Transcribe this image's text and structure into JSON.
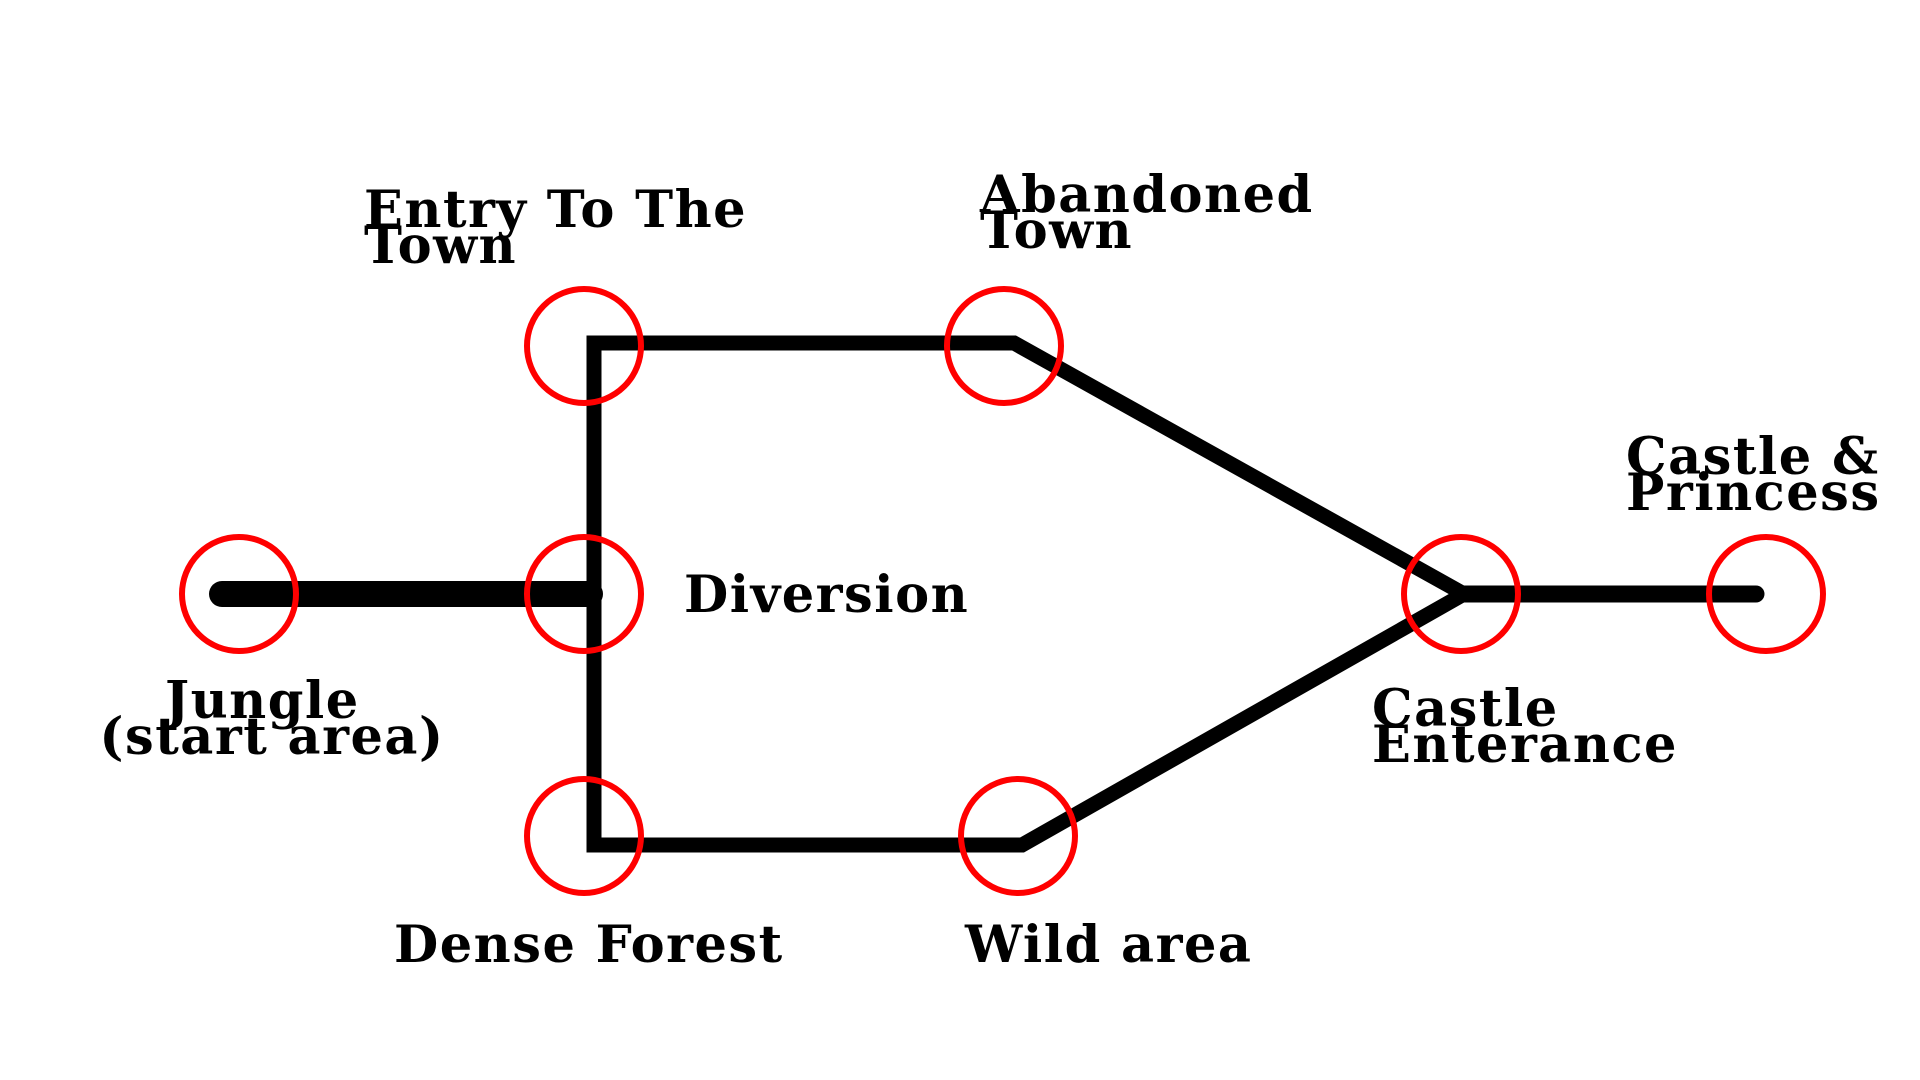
{
  "colors": {
    "node_ring": "#ff0000",
    "edge": "#000000",
    "label": "#000000",
    "background": "#ffffff"
  },
  "nodes": {
    "jungle": {
      "line1": "Jungle",
      "line2": "(start area)"
    },
    "entry_town": {
      "line1": "Entry To The",
      "line2": "Town"
    },
    "diversion": {
      "line1": "Diversion"
    },
    "dense_forest": {
      "line1": "Dense Forest"
    },
    "abandoned_town": {
      "line1": "Abandoned",
      "line2": "Town"
    },
    "wild_area": {
      "line1": "Wild area"
    },
    "castle_entrance": {
      "line1": "Castle",
      "line2": "Enterance"
    },
    "castle_princess": {
      "line1": "Castle &",
      "line2": "Princess"
    }
  },
  "edges": [
    {
      "from": "jungle",
      "to": "diversion"
    },
    {
      "from": "entry_town",
      "to": "dense_forest"
    },
    {
      "from": "entry_town",
      "to": "abandoned_town"
    },
    {
      "from": "dense_forest",
      "to": "wild_area"
    },
    {
      "from": "abandoned_town",
      "to": "castle_entrance"
    },
    {
      "from": "wild_area",
      "to": "castle_entrance"
    },
    {
      "from": "castle_entrance",
      "to": "castle_princess"
    }
  ]
}
